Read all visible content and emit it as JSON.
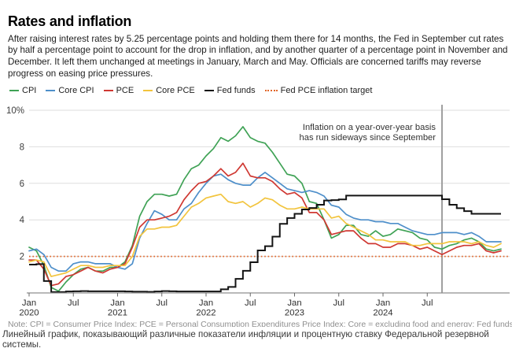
{
  "header": {
    "title": "Rates and inflation",
    "description": "After raising interest rates by 5.25 percentage points and holding them there for 14 months, the Fed in September cut rates by half a percentage point to account for the drop in inflation, and by another quarter of a percentage point in November and December. It left them unchanged at meetings in January, March and May. Officials are concerned tariffs may reverse progress on easing price pressures."
  },
  "legend": [
    {
      "id": "cpi",
      "label": "CPI",
      "color": "#3fa255",
      "style": "solid"
    },
    {
      "id": "core-cpi",
      "label": "Core CPI",
      "color": "#4e8fca",
      "style": "solid"
    },
    {
      "id": "pce",
      "label": "PCE",
      "color": "#cf3832",
      "style": "solid"
    },
    {
      "id": "core-pce",
      "label": "Core PCE",
      "color": "#f2c43d",
      "style": "solid"
    },
    {
      "id": "fed-funds",
      "label": "Fed funds",
      "color": "#141414",
      "style": "solid"
    },
    {
      "id": "fed-target",
      "label": "Fed PCE inflation target",
      "color": "#e2672a",
      "style": "dotted"
    }
  ],
  "chart_data": {
    "type": "line",
    "x_unit": "month",
    "x_start": "2020-01",
    "x_end": "2025-05",
    "ylim": [
      0,
      10.4
    ],
    "yticks": [
      2,
      4,
      6,
      8,
      10
    ],
    "ytick_labels": [
      "2",
      "4",
      "6",
      "8",
      "10%"
    ],
    "grid": true,
    "x_ticks": [
      {
        "t": 0,
        "label": "Jan",
        "year": "2020"
      },
      {
        "t": 6,
        "label": "Jul"
      },
      {
        "t": 12,
        "label": "Jan",
        "year": "2021"
      },
      {
        "t": 18,
        "label": "Jul"
      },
      {
        "t": 24,
        "label": "Jan",
        "year": "2022"
      },
      {
        "t": 30,
        "label": "Jul"
      },
      {
        "t": 36,
        "label": "Jan",
        "year": "2023"
      },
      {
        "t": 42,
        "label": "Jul"
      },
      {
        "t": 48,
        "label": "Jan",
        "year": "2024"
      },
      {
        "t": 54,
        "label": "Jul"
      }
    ],
    "target_line": {
      "value": 2,
      "color": "#e2672a",
      "label": "Fed PCE inflation target"
    },
    "event_line": {
      "t": 56,
      "color": "#a0a0a0"
    },
    "annotation": {
      "line1": "Inflation on a year-over-year basis",
      "line2": "has run sideways since September"
    },
    "series": [
      {
        "id": "cpi",
        "name": "CPI",
        "color": "#3fa255",
        "shape": "linear",
        "values": [
          2.5,
          2.3,
          1.5,
          0.3,
          0.1,
          0.6,
          1.0,
          1.3,
          1.4,
          1.2,
          1.2,
          1.4,
          1.4,
          1.7,
          2.6,
          4.2,
          5.0,
          5.4,
          5.4,
          5.3,
          5.4,
          6.2,
          6.8,
          7.0,
          7.5,
          7.9,
          8.5,
          8.3,
          8.6,
          9.1,
          8.5,
          8.3,
          8.2,
          7.7,
          7.1,
          6.5,
          6.4,
          6.0,
          5.0,
          4.9,
          4.0,
          3.0,
          3.2,
          3.7,
          3.7,
          3.2,
          3.1,
          3.4,
          3.1,
          3.2,
          3.5,
          3.4,
          3.3,
          3.0,
          2.9,
          2.5,
          2.4,
          2.6,
          2.7,
          2.9,
          3.0,
          2.8,
          2.4,
          2.3,
          2.4
        ]
      },
      {
        "id": "core-cpi",
        "name": "Core CPI",
        "color": "#4e8fca",
        "shape": "linear",
        "values": [
          2.3,
          2.4,
          2.1,
          1.4,
          1.2,
          1.2,
          1.6,
          1.7,
          1.7,
          1.6,
          1.6,
          1.6,
          1.4,
          1.3,
          1.6,
          3.0,
          3.8,
          4.5,
          4.3,
          4.0,
          4.0,
          4.6,
          4.9,
          5.5,
          6.0,
          6.4,
          6.5,
          6.2,
          6.0,
          5.9,
          5.9,
          6.3,
          6.6,
          6.3,
          6.0,
          5.7,
          5.6,
          5.5,
          5.6,
          5.5,
          5.3,
          4.8,
          4.7,
          4.3,
          4.1,
          4.0,
          4.0,
          3.9,
          3.9,
          3.8,
          3.8,
          3.6,
          3.4,
          3.3,
          3.2,
          3.2,
          3.3,
          3.3,
          3.3,
          3.2,
          3.3,
          3.1,
          2.8,
          2.8,
          2.8
        ]
      },
      {
        "id": "pce",
        "name": "PCE",
        "color": "#cf3832",
        "shape": "linear",
        "values": [
          1.8,
          1.8,
          1.3,
          0.4,
          0.5,
          0.9,
          1.0,
          1.2,
          1.4,
          1.2,
          1.1,
          1.3,
          1.4,
          1.6,
          2.5,
          3.6,
          4.0,
          4.0,
          4.1,
          4.2,
          4.4,
          5.1,
          5.6,
          6.0,
          6.1,
          6.4,
          6.8,
          6.4,
          6.6,
          7.1,
          6.4,
          6.3,
          6.3,
          6.1,
          5.7,
          5.4,
          5.5,
          5.2,
          4.4,
          4.4,
          4.0,
          3.2,
          3.3,
          3.4,
          3.4,
          3.0,
          2.7,
          2.7,
          2.5,
          2.5,
          2.7,
          2.7,
          2.6,
          2.4,
          2.5,
          2.3,
          2.1,
          2.3,
          2.5,
          2.6,
          2.6,
          2.7,
          2.3,
          2.2,
          2.3
        ]
      },
      {
        "id": "core-pce",
        "name": "Core PCE",
        "color": "#f2c43d",
        "shape": "linear",
        "values": [
          1.7,
          1.8,
          1.7,
          0.9,
          1.0,
          1.1,
          1.3,
          1.5,
          1.5,
          1.4,
          1.4,
          1.5,
          1.5,
          1.5,
          2.0,
          3.1,
          3.5,
          3.5,
          3.6,
          3.6,
          3.7,
          4.2,
          4.7,
          4.9,
          5.2,
          5.3,
          5.4,
          5.0,
          4.9,
          5.0,
          4.7,
          4.9,
          5.2,
          5.1,
          4.8,
          4.6,
          4.6,
          4.7,
          4.6,
          4.6,
          4.6,
          4.1,
          4.2,
          3.8,
          3.6,
          3.4,
          3.2,
          2.9,
          2.9,
          2.8,
          2.8,
          2.8,
          2.6,
          2.6,
          2.7,
          2.7,
          2.7,
          2.8,
          2.8,
          2.8,
          2.7,
          2.8,
          2.6,
          2.5,
          2.7
        ]
      },
      {
        "id": "fed-funds",
        "name": "Fed funds",
        "color": "#141414",
        "shape": "step",
        "values": [
          1.55,
          1.58,
          0.65,
          0.05,
          0.05,
          0.08,
          0.09,
          0.1,
          0.09,
          0.09,
          0.09,
          0.09,
          0.09,
          0.08,
          0.07,
          0.07,
          0.06,
          0.08,
          0.1,
          0.09,
          0.08,
          0.08,
          0.08,
          0.08,
          0.08,
          0.08,
          0.2,
          0.33,
          0.77,
          1.21,
          1.68,
          2.33,
          2.56,
          3.08,
          3.78,
          4.1,
          4.33,
          4.57,
          4.65,
          4.83,
          5.06,
          5.08,
          5.12,
          5.33,
          5.33,
          5.33,
          5.33,
          5.33,
          5.33,
          5.33,
          5.33,
          5.33,
          5.33,
          5.33,
          5.33,
          5.33,
          5.13,
          4.83,
          4.64,
          4.48,
          4.33,
          4.33,
          4.33,
          4.33,
          4.33
        ]
      }
    ]
  },
  "footer": {
    "note": "Note: CPI = Consumer Price Index; PCE = Personal Consumption Expenditures Price Index; Core = excluding food and energy; Fed funds = Fed policy",
    "caption": "Линейный график, показывающий различные показатели инфляции и процентную ставку Федеральной резервной системы."
  }
}
